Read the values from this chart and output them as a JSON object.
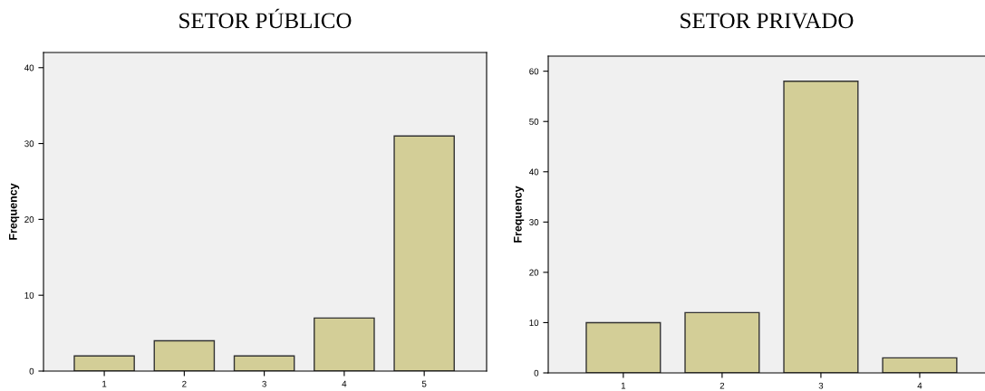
{
  "chart_data": [
    {
      "type": "bar",
      "title": "SETOR PÚBLICO",
      "ylabel": "Frequency",
      "categories": [
        "1",
        "2",
        "3",
        "4",
        "5"
      ],
      "values": [
        2,
        4,
        2,
        7,
        31
      ],
      "color": "#d3ce97",
      "ylim": [
        0,
        42
      ],
      "yticks": [
        0,
        10,
        20,
        30,
        40
      ],
      "grid": false,
      "legend": false
    },
    {
      "type": "bar",
      "title": "SETOR PRIVADO",
      "ylabel": "Frequency",
      "categories": [
        "1",
        "2",
        "3",
        "4"
      ],
      "values": [
        10,
        12,
        58,
        3
      ],
      "color": "#d3ce97",
      "ylim": [
        0,
        63
      ],
      "yticks": [
        0,
        10,
        20,
        30,
        40,
        50,
        60
      ],
      "grid": false,
      "legend": false
    }
  ]
}
